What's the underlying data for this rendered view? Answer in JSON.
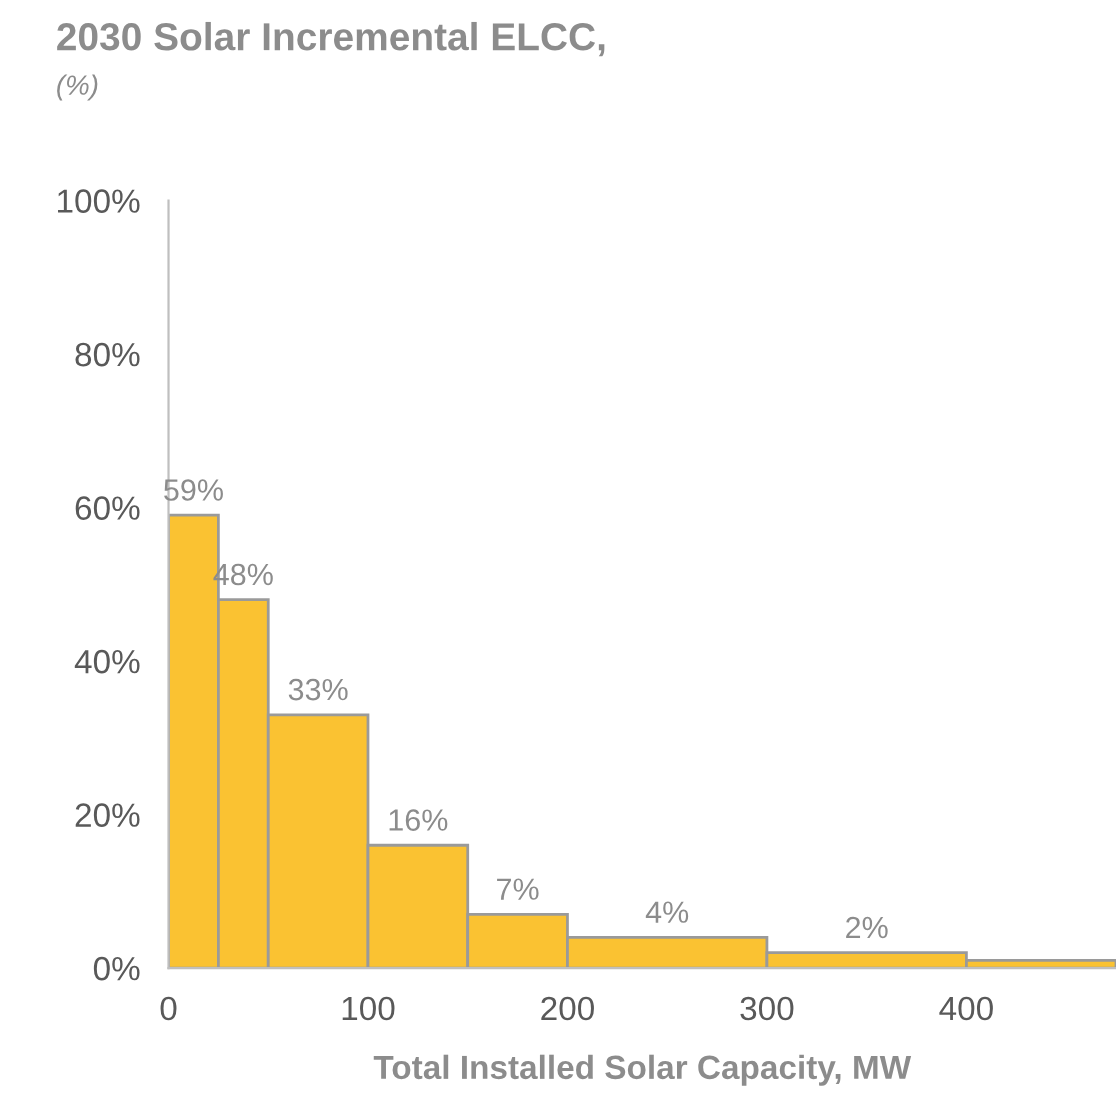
{
  "chart_data": {
    "type": "histogram",
    "title": "2030 Solar Incremental ELCC,",
    "subtitle": "(%)",
    "xlabel": "Total Installed Solar Capacity, MW",
    "bins": [
      0,
      25,
      50,
      100,
      150,
      200,
      300,
      400,
      475
    ],
    "values": [
      59,
      48,
      33,
      16,
      7,
      4,
      2,
      1
    ],
    "value_labels": [
      "59%",
      "48%",
      "33%",
      "16%",
      "7%",
      "4%",
      "2%",
      null
    ],
    "color": "#fac232",
    "xlim": [
      0,
      475
    ],
    "xticks": [
      0,
      100,
      200,
      300,
      400
    ],
    "ylim": [
      0,
      100
    ],
    "yticks": [
      {
        "value": 0,
        "label": "0%"
      },
      {
        "value": 20,
        "label": "20%"
      },
      {
        "value": 40,
        "label": "40%"
      },
      {
        "value": 60,
        "label": "60%"
      },
      {
        "value": 80,
        "label": "80%"
      },
      {
        "value": 100,
        "label": "100%"
      }
    ],
    "grid": false
  }
}
